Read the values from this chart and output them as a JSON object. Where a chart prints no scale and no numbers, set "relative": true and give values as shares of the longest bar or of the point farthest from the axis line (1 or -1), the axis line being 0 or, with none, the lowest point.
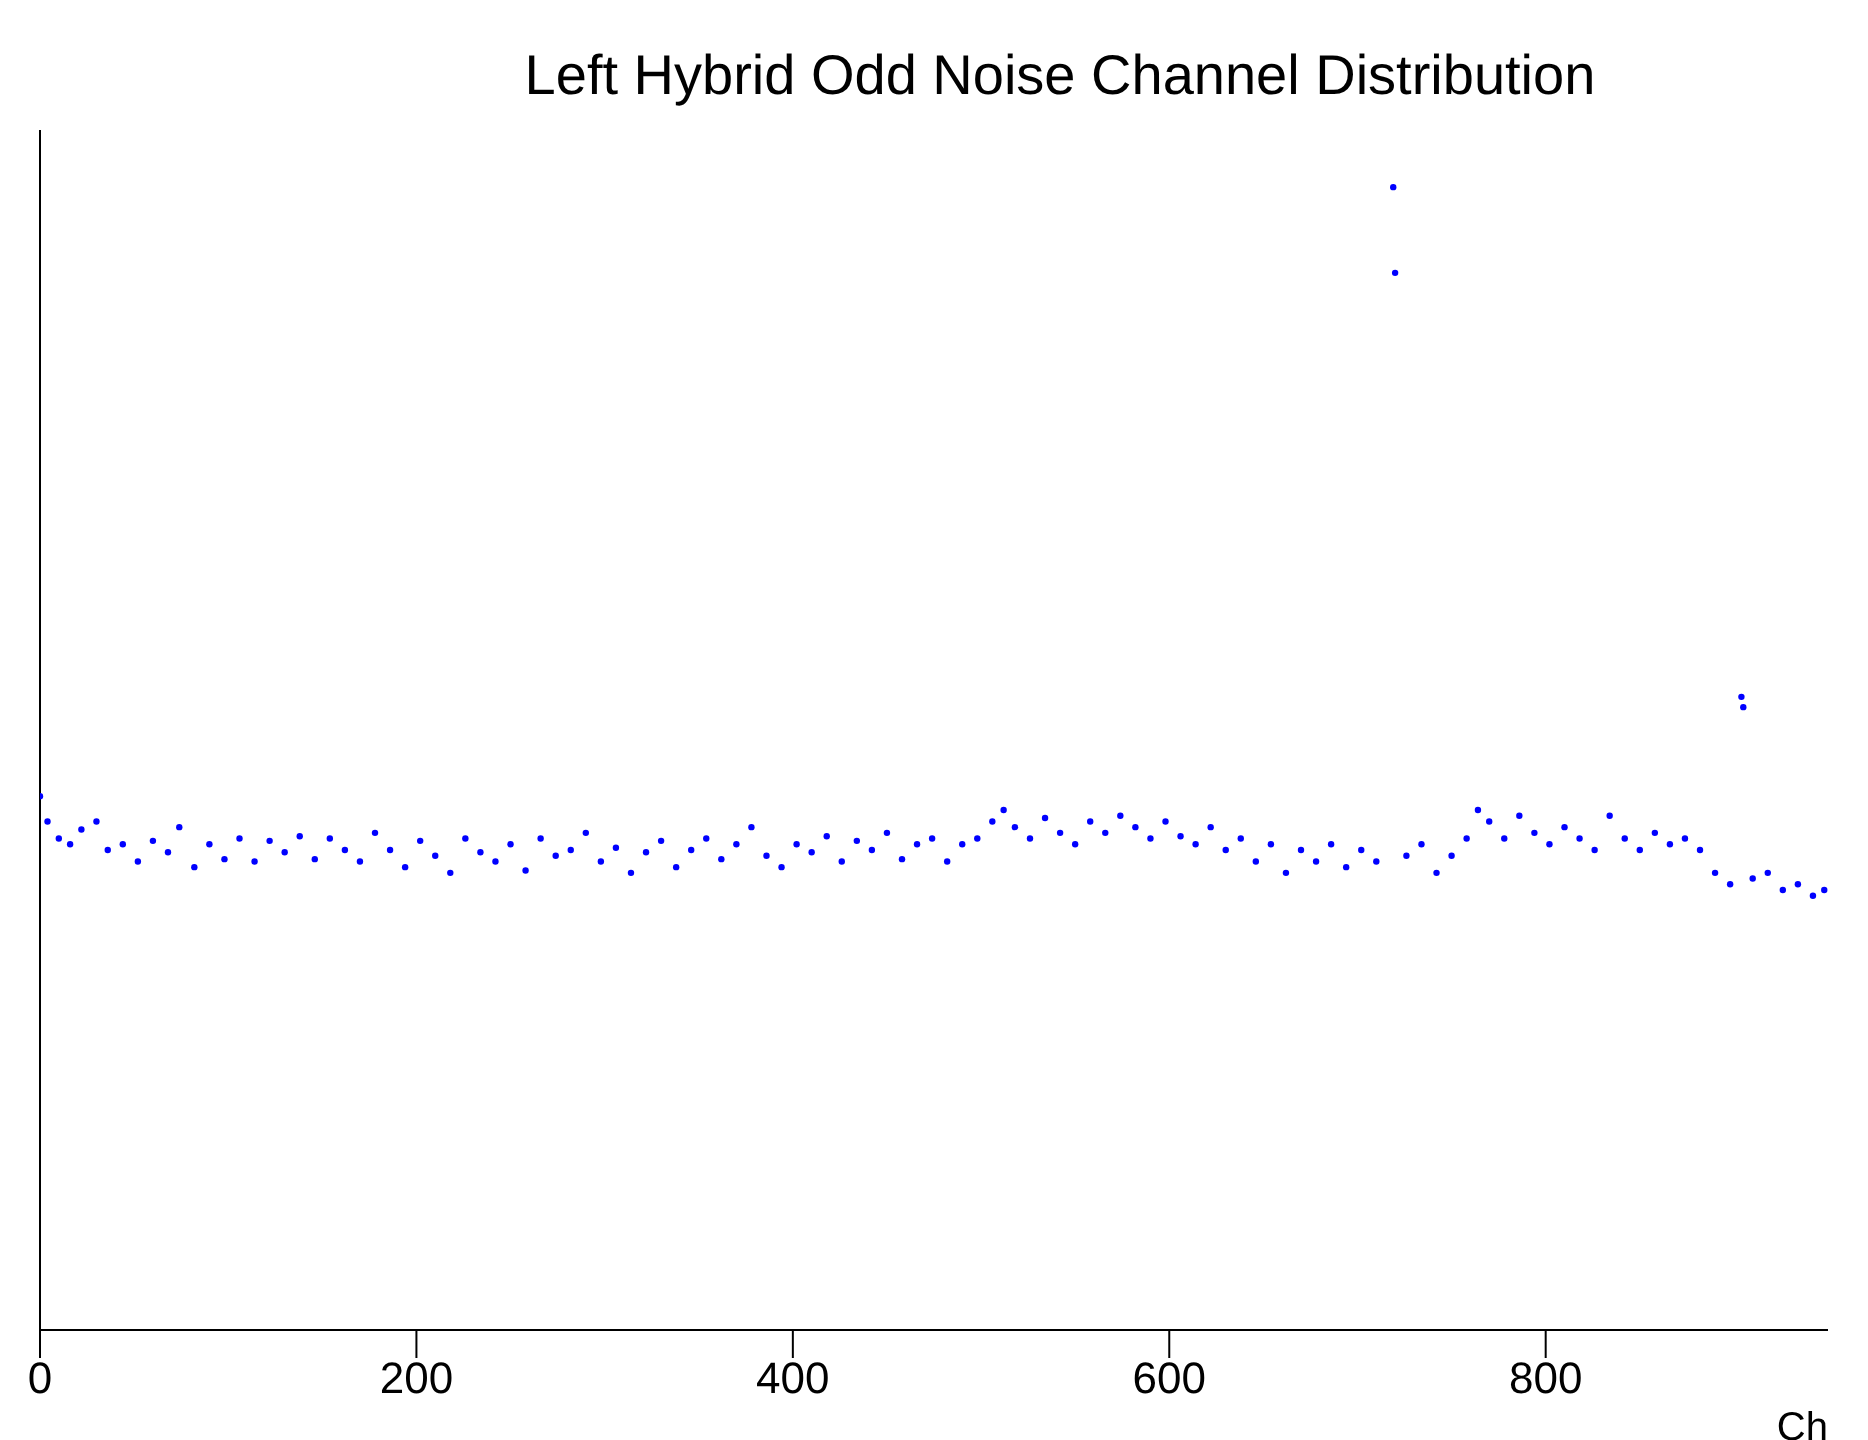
{
  "chart_data": {
    "type": "scatter",
    "title": "Left Hybrid Odd Noise Channel Distribution",
    "xlabel": "Ch",
    "relative": true,
    "tick_labels": "x",
    "grid": false,
    "legend": false,
    "marker": "circle",
    "xlim": [
      0,
      950
    ],
    "xticks": [
      0,
      200,
      400,
      600,
      800
    ],
    "series": [
      {
        "color": "#0000ff",
        "x": [
          0,
          4,
          10,
          16,
          22,
          30,
          36,
          44,
          52,
          60,
          68,
          74,
          82,
          90,
          98,
          106,
          114,
          122,
          130,
          138,
          146,
          154,
          162,
          170,
          178,
          186,
          194,
          202,
          210,
          218,
          226,
          234,
          242,
          250,
          258,
          266,
          274,
          282,
          290,
          298,
          306,
          314,
          322,
          330,
          338,
          346,
          354,
          362,
          370,
          378,
          386,
          394,
          402,
          410,
          418,
          426,
          434,
          442,
          450,
          458,
          466,
          474,
          482,
          490,
          498,
          506,
          512,
          518,
          526,
          534,
          542,
          550,
          558,
          566,
          574,
          582,
          590,
          598,
          606,
          614,
          622,
          630,
          638,
          646,
          654,
          662,
          670,
          678,
          686,
          694,
          702,
          710,
          719,
          720,
          726,
          734,
          742,
          750,
          758,
          764,
          770,
          778,
          786,
          794,
          802,
          810,
          818,
          826,
          834,
          842,
          850,
          858,
          866,
          874,
          882,
          890,
          898,
          904,
          905,
          910,
          918,
          926,
          934,
          942,
          948
        ],
        "values": [
          0.467,
          0.445,
          0.43,
          0.425,
          0.438,
          0.445,
          0.42,
          0.425,
          0.41,
          0.428,
          0.418,
          0.44,
          0.405,
          0.425,
          0.412,
          0.43,
          0.41,
          0.428,
          0.418,
          0.432,
          0.412,
          0.43,
          0.42,
          0.41,
          0.435,
          0.42,
          0.405,
          0.428,
          0.415,
          0.4,
          0.43,
          0.418,
          0.41,
          0.425,
          0.402,
          0.43,
          0.415,
          0.42,
          0.435,
          0.41,
          0.422,
          0.4,
          0.418,
          0.428,
          0.405,
          0.42,
          0.43,
          0.412,
          0.425,
          0.44,
          0.415,
          0.405,
          0.425,
          0.418,
          0.432,
          0.41,
          0.428,
          0.42,
          0.435,
          0.412,
          0.425,
          0.43,
          0.41,
          0.425,
          0.43,
          0.445,
          0.455,
          0.44,
          0.43,
          0.448,
          0.435,
          0.425,
          0.445,
          0.435,
          0.45,
          0.44,
          0.43,
          0.445,
          0.432,
          0.425,
          0.44,
          0.42,
          0.43,
          0.41,
          0.425,
          0.4,
          0.42,
          0.41,
          0.425,
          0.405,
          0.42,
          0.41,
          1.0,
          0.925,
          0.415,
          0.425,
          0.4,
          0.415,
          0.43,
          0.455,
          0.445,
          0.43,
          0.45,
          0.435,
          0.425,
          0.44,
          0.43,
          0.42,
          0.45,
          0.43,
          0.42,
          0.435,
          0.425,
          0.43,
          0.42,
          0.4,
          0.39,
          0.554,
          0.545,
          0.395,
          0.4,
          0.385,
          0.39,
          0.38,
          0.385
        ]
      }
    ]
  }
}
